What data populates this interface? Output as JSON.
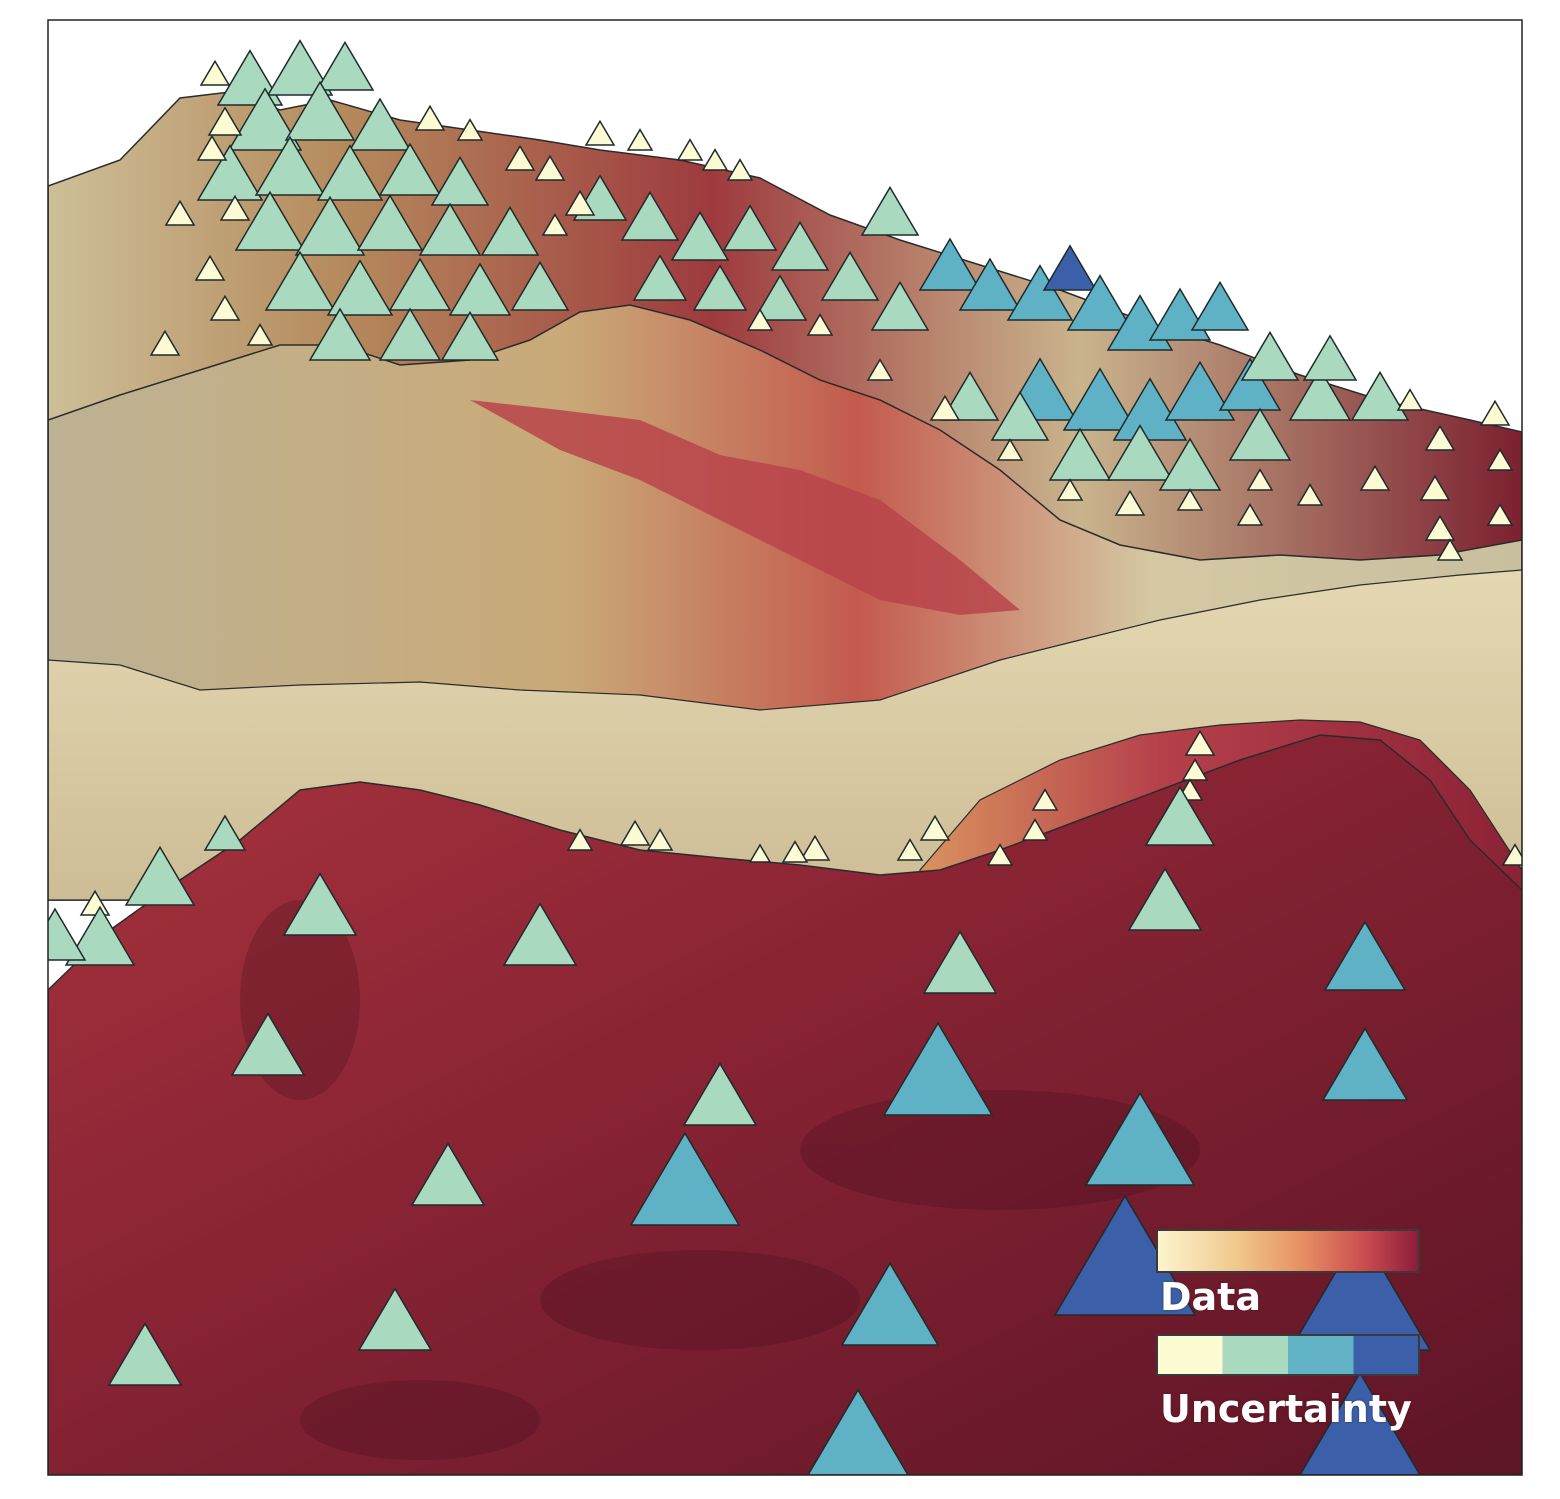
{
  "legend": {
    "data_label": "Data",
    "uncertainty_label": "Uncertainty",
    "data_gradient_colors": [
      "#fdf5cf",
      "#f0c98d",
      "#e79063",
      "#c94a4f",
      "#8b1c39"
    ],
    "uncertainty_colors": [
      "#fdfbd3",
      "#a9d9be",
      "#63b3c6",
      "#3b5fa9"
    ]
  },
  "colors": {
    "terrain_light": "#e7dcb8",
    "terrain_grey": "#b9ae90",
    "terrain_tan": "#d8a672",
    "terrain_red": "#b73b44",
    "terrain_dark": "#6f1a2c",
    "marker_cream": "#fdfbd3",
    "marker_mint": "#a9d9be",
    "marker_teal": "#5fb2c5",
    "marker_blue": "#3b5fa9"
  }
}
